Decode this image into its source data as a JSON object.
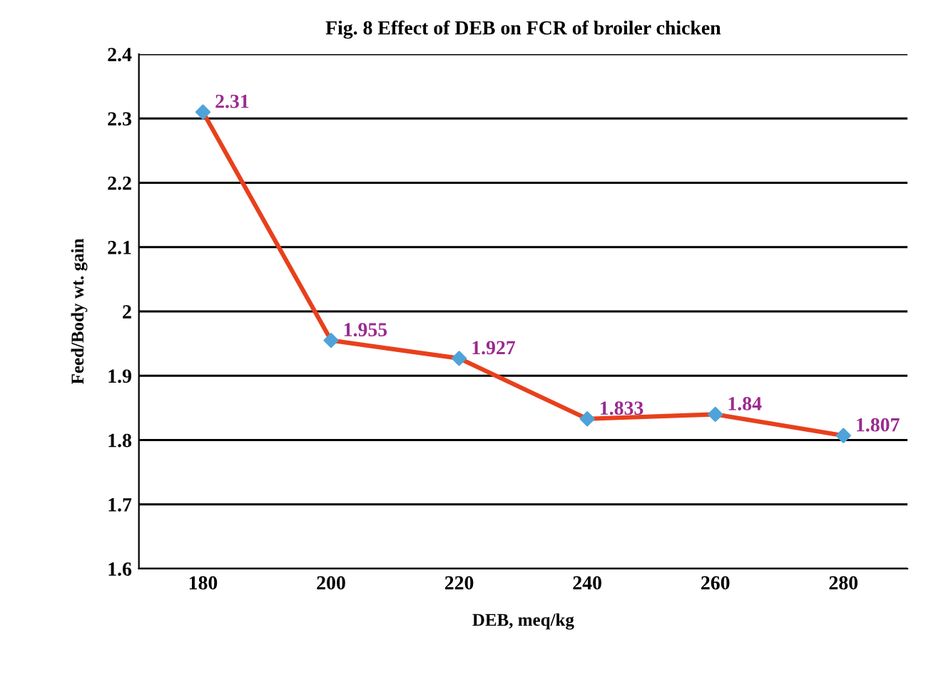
{
  "chart_data": {
    "type": "line",
    "title": "Fig. 8 Effect of DEB on FCR of broiler chicken",
    "xlabel": "DEB, meq/kg",
    "ylabel": "Feed/Body wt. gain",
    "categories": [
      "180",
      "200",
      "220",
      "240",
      "260",
      "280"
    ],
    "series": [
      {
        "color": "#e8401c",
        "colors": [
          "#4fa3d8",
          "#4fa3d8",
          "#4fa3d8",
          "#4fa3d8",
          "#4fa3d8",
          "#4fa3d8"
        ],
        "values": [
          2.31,
          1.955,
          1.927,
          1.833,
          1.84,
          1.807
        ]
      }
    ],
    "ylim": [
      1.6,
      2.4
    ],
    "yticks": [
      1.6,
      1.7,
      1.8,
      1.9,
      2,
      2.1,
      2.2,
      2.3,
      2.4
    ],
    "grid": "y",
    "marker": "diamond",
    "line_style": "solid",
    "data_labels": true,
    "legend": false
  }
}
